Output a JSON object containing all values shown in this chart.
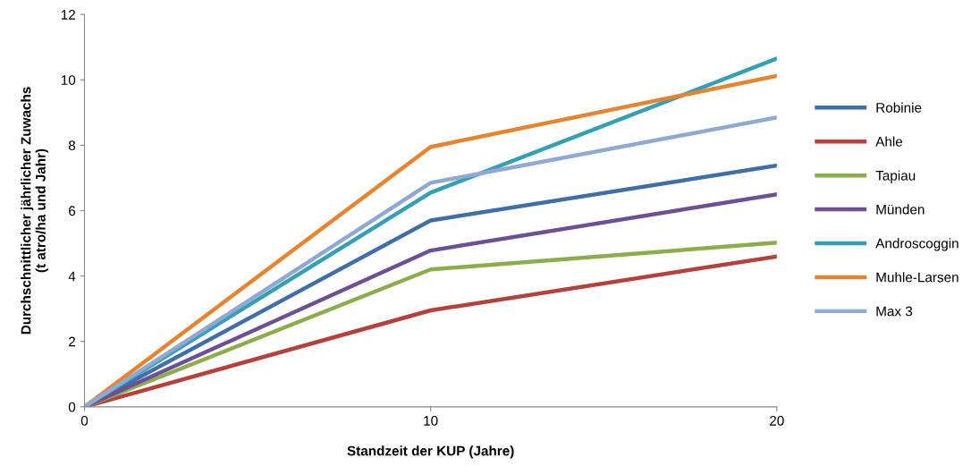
{
  "chart_data": {
    "type": "line",
    "xlabel": "Standzeit der KUP (Jahre)",
    "ylabel": "Durchschnittlicher jährlicher Zuwachs\n(t atro/ha und Jahr)",
    "x": [
      0,
      10,
      20
    ],
    "xlim": [
      0,
      20
    ],
    "xticks": [
      0,
      10,
      20
    ],
    "ylim": [
      0,
      12
    ],
    "yticks": [
      0,
      2,
      4,
      6,
      8,
      10,
      12
    ],
    "grid": false,
    "legend": "right",
    "marker": "none",
    "line_style": "solid",
    "series": [
      {
        "name": "Robinie",
        "color": "#3f6ea8",
        "values": [
          0,
          5.7,
          7.38
        ]
      },
      {
        "name": "Ahle",
        "color": "#b5403c",
        "values": [
          0,
          2.95,
          4.6
        ]
      },
      {
        "name": "Tapiau",
        "color": "#8cae4a",
        "values": [
          0,
          4.2,
          5.02
        ]
      },
      {
        "name": "Münden",
        "color": "#6d4f96",
        "values": [
          0,
          4.78,
          6.5
        ]
      },
      {
        "name": "Androscoggin",
        "color": "#33a0b5",
        "values": [
          0,
          6.55,
          10.65
        ]
      },
      {
        "name": "Muhle-Larsen",
        "color": "#e8832e",
        "values": [
          0,
          7.95,
          10.12
        ]
      },
      {
        "name": "Max 3",
        "color": "#8fa8d4",
        "values": [
          0,
          6.85,
          8.85
        ]
      }
    ]
  }
}
